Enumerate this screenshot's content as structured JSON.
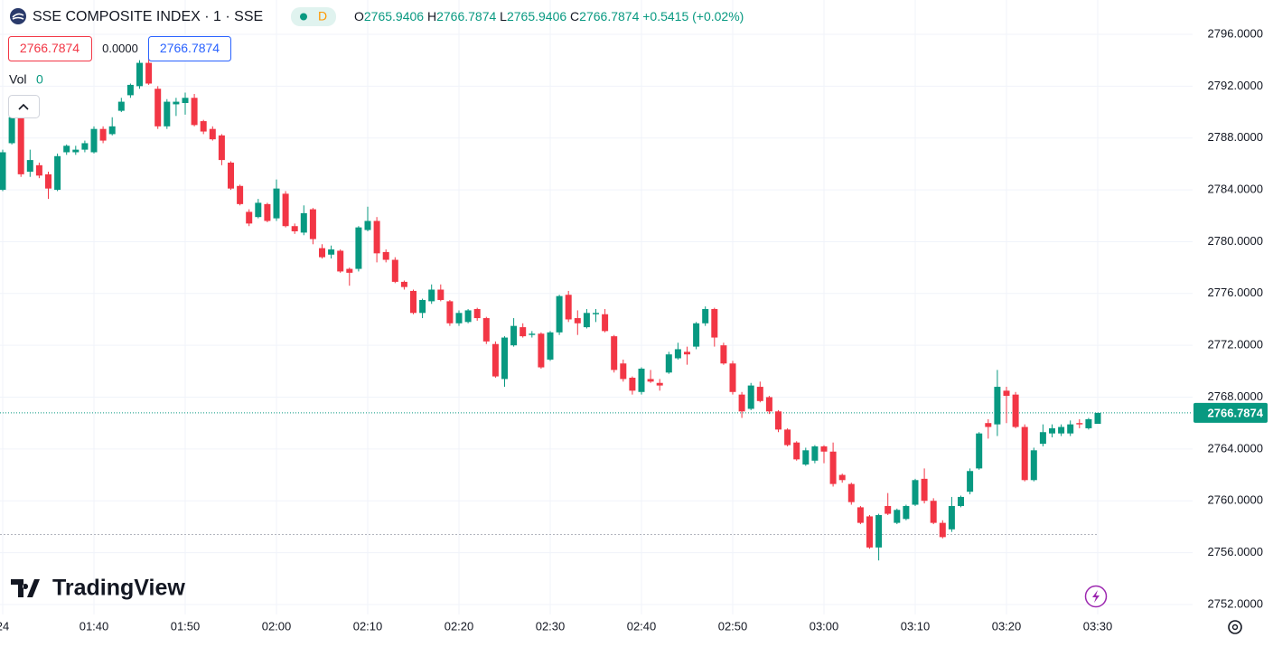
{
  "chart_data": {
    "type": "candlestick",
    "title": "SSE COMPOSITE INDEX · 1 · SSE",
    "interval_badge": "D",
    "ohlc_letters": [
      "O",
      "H",
      "L",
      "C"
    ],
    "change_text": "+0.5415 (+0.02%)",
    "spread_text": "0.0000",
    "volume_label": "Vol",
    "volume_value": "0",
    "brand": "TradingView",
    "up_color": "#089981",
    "down_color": "#f23645",
    "reference_line": 2757.4,
    "grid": true,
    "ylim": [
      2751.23,
      2798.65
    ],
    "yticks": [
      {
        "value": 2752,
        "label": "2752.0000"
      },
      {
        "value": 2756,
        "label": "2756.0000"
      },
      {
        "value": 2760,
        "label": "2760.0000"
      },
      {
        "value": 2764,
        "label": "2764.0000"
      },
      {
        "value": 2768,
        "label": "2768.0000"
      },
      {
        "value": 2772,
        "label": "2772.0000"
      },
      {
        "value": 2776,
        "label": "2776.0000"
      },
      {
        "value": 2780,
        "label": "2780.0000"
      },
      {
        "value": 2784,
        "label": "2784.0000"
      },
      {
        "value": 2788,
        "label": "2788.0000"
      },
      {
        "value": 2792,
        "label": "2792.0000"
      },
      {
        "value": 2796,
        "label": "2796.0000"
      }
    ],
    "categories": [
      "24",
      null,
      null,
      null,
      null,
      null,
      null,
      null,
      null,
      null,
      "01:40",
      null,
      null,
      null,
      null,
      null,
      null,
      null,
      null,
      null,
      "01:50",
      null,
      null,
      null,
      null,
      null,
      null,
      null,
      null,
      null,
      "02:00",
      null,
      null,
      null,
      null,
      null,
      null,
      null,
      null,
      null,
      "02:10",
      null,
      null,
      null,
      null,
      null,
      null,
      null,
      null,
      null,
      "02:20",
      null,
      null,
      null,
      null,
      null,
      null,
      null,
      null,
      null,
      "02:30",
      null,
      null,
      null,
      null,
      null,
      null,
      null,
      null,
      null,
      "02:40",
      null,
      null,
      null,
      null,
      null,
      null,
      null,
      null,
      null,
      "02:50",
      null,
      null,
      null,
      null,
      null,
      null,
      null,
      null,
      null,
      "03:00",
      null,
      null,
      null,
      null,
      null,
      null,
      null,
      null,
      null,
      "03:10",
      null,
      null,
      null,
      null,
      null,
      null,
      null,
      null,
      null,
      "03:20",
      null,
      null,
      null,
      null,
      null,
      null,
      null,
      null,
      null,
      "03:30"
    ],
    "ohlc": [
      [
        2784.0,
        2787.1,
        2783.9,
        2786.9
      ],
      [
        2787.6,
        2789.7,
        2787.5,
        2789.6
      ],
      [
        2789.6,
        2789.7,
        2785.0,
        2785.2
      ],
      [
        2785.4,
        2787.1,
        2785.0,
        2786.3
      ],
      [
        2785.9,
        2786.1,
        2784.9,
        2785.1
      ],
      [
        2785.2,
        2785.4,
        2783.3,
        2784.1
      ],
      [
        2784.0,
        2786.8,
        2783.9,
        2786.6
      ],
      [
        2786.9,
        2787.5,
        2786.7,
        2787.4
      ],
      [
        2786.9,
        2787.4,
        2786.7,
        2787.1
      ],
      [
        2787.1,
        2787.8,
        2786.9,
        2787.6
      ],
      [
        2786.9,
        2788.9,
        2786.8,
        2788.7
      ],
      [
        2788.7,
        2788.9,
        2787.6,
        2787.8
      ],
      [
        2788.3,
        2789.6,
        2788.2,
        2788.9
      ],
      [
        2790.1,
        2791.1,
        2790.0,
        2790.8
      ],
      [
        2791.3,
        2792.2,
        2791.1,
        2792.1
      ],
      [
        2792.0,
        2794.0,
        2791.8,
        2793.8
      ],
      [
        2793.8,
        2794.2,
        2792.1,
        2792.2
      ],
      [
        2791.8,
        2792.0,
        2788.7,
        2788.9
      ],
      [
        2788.9,
        2791.0,
        2788.7,
        2790.8
      ],
      [
        2790.6,
        2791.1,
        2789.7,
        2790.8
      ],
      [
        2790.7,
        2791.5,
        2789.8,
        2791.1
      ],
      [
        2791.1,
        2791.4,
        2788.9,
        2789.0
      ],
      [
        2789.3,
        2789.4,
        2788.3,
        2788.5
      ],
      [
        2788.7,
        2788.9,
        2787.8,
        2787.9
      ],
      [
        2788.2,
        2788.3,
        2785.9,
        2786.3
      ],
      [
        2786.1,
        2786.2,
        2784.0,
        2784.1
      ],
      [
        2784.3,
        2784.4,
        2782.8,
        2782.9
      ],
      [
        2782.3,
        2782.5,
        2781.2,
        2781.4
      ],
      [
        2781.9,
        2783.3,
        2781.8,
        2783.0
      ],
      [
        2782.9,
        2783.0,
        2781.5,
        2781.6
      ],
      [
        2781.8,
        2784.8,
        2781.6,
        2784.1
      ],
      [
        2783.7,
        2783.9,
        2781.1,
        2781.2
      ],
      [
        2781.2,
        2781.4,
        2780.6,
        2780.8
      ],
      [
        2780.7,
        2782.8,
        2780.5,
        2782.2
      ],
      [
        2782.5,
        2782.6,
        2779.8,
        2780.2
      ],
      [
        2779.5,
        2779.8,
        2778.7,
        2778.8
      ],
      [
        2779.0,
        2779.7,
        2778.7,
        2779.4
      ],
      [
        2779.3,
        2779.4,
        2777.6,
        2777.7
      ],
      [
        2777.9,
        2778.0,
        2776.6,
        2777.6
      ],
      [
        2777.9,
        2781.2,
        2777.7,
        2781.1
      ],
      [
        2780.9,
        2782.7,
        2780.8,
        2781.6
      ],
      [
        2781.6,
        2781.9,
        2778.4,
        2779.1
      ],
      [
        2779.2,
        2779.4,
        2778.4,
        2778.6
      ],
      [
        2778.6,
        2778.8,
        2776.8,
        2776.9
      ],
      [
        2776.9,
        2777.0,
        2776.3,
        2776.5
      ],
      [
        2776.2,
        2776.3,
        2774.4,
        2774.5
      ],
      [
        2774.5,
        2775.6,
        2774.1,
        2775.5
      ],
      [
        2775.4,
        2776.7,
        2775.2,
        2776.3
      ],
      [
        2776.3,
        2776.7,
        2775.4,
        2775.5
      ],
      [
        2775.4,
        2775.5,
        2773.5,
        2773.7
      ],
      [
        2773.7,
        2774.7,
        2773.5,
        2774.5
      ],
      [
        2773.8,
        2774.8,
        2773.7,
        2774.7
      ],
      [
        2774.8,
        2774.9,
        2773.9,
        2774.1
      ],
      [
        2774.1,
        2774.2,
        2772.1,
        2772.3
      ],
      [
        2772.1,
        2772.3,
        2769.5,
        2769.6
      ],
      [
        2769.4,
        2772.7,
        2768.8,
        2772.6
      ],
      [
        2772.0,
        2774.1,
        2771.9,
        2773.5
      ],
      [
        2773.4,
        2773.7,
        2772.6,
        2772.7
      ],
      [
        2772.8,
        2773.1,
        2772.6,
        2772.9
      ],
      [
        2772.9,
        2773.0,
        2770.2,
        2770.3
      ],
      [
        2770.9,
        2773.1,
        2770.8,
        2773.0
      ],
      [
        2773.0,
        2775.9,
        2772.8,
        2775.8
      ],
      [
        2775.9,
        2776.2,
        2773.8,
        2774.0
      ],
      [
        2774.1,
        2774.7,
        2772.8,
        2773.7
      ],
      [
        2773.4,
        2774.8,
        2773.3,
        2774.5
      ],
      [
        2774.4,
        2774.8,
        2773.8,
        2774.5
      ],
      [
        2774.4,
        2774.8,
        2773.0,
        2773.1
      ],
      [
        2772.7,
        2772.8,
        2769.9,
        2770.1
      ],
      [
        2770.6,
        2770.9,
        2769.2,
        2769.4
      ],
      [
        2769.5,
        2769.6,
        2768.2,
        2768.5
      ],
      [
        2768.4,
        2770.3,
        2768.2,
        2770.2
      ],
      [
        2769.4,
        2770.1,
        2769.1,
        2769.2
      ],
      [
        2769.1,
        2769.4,
        2768.5,
        2768.9
      ],
      [
        2769.9,
        2771.5,
        2769.8,
        2771.3
      ],
      [
        2771.0,
        2772.2,
        2770.9,
        2771.7
      ],
      [
        2771.5,
        2771.9,
        2770.5,
        2771.3
      ],
      [
        2771.9,
        2773.8,
        2771.7,
        2773.7
      ],
      [
        2773.7,
        2775.0,
        2773.5,
        2774.8
      ],
      [
        2774.8,
        2774.9,
        2771.9,
        2772.6
      ],
      [
        2772.0,
        2772.2,
        2770.5,
        2770.6
      ],
      [
        2770.6,
        2770.8,
        2768.2,
        2768.4
      ],
      [
        2768.2,
        2768.4,
        2766.4,
        2766.9
      ],
      [
        2767.1,
        2769.1,
        2767.0,
        2768.9
      ],
      [
        2768.8,
        2769.2,
        2767.6,
        2767.7
      ],
      [
        2768.0,
        2768.1,
        2766.7,
        2766.9
      ],
      [
        2766.9,
        2767.0,
        2765.3,
        2765.5
      ],
      [
        2765.5,
        2765.6,
        2764.2,
        2764.3
      ],
      [
        2764.5,
        2764.6,
        2763.1,
        2763.2
      ],
      [
        2762.8,
        2764.1,
        2762.7,
        2763.9
      ],
      [
        2763.1,
        2764.3,
        2762.9,
        2764.2
      ],
      [
        2764.2,
        2764.3,
        2762.9,
        2763.8
      ],
      [
        2763.8,
        2764.5,
        2761.1,
        2761.3
      ],
      [
        2762.0,
        2762.1,
        2761.4,
        2761.6
      ],
      [
        2761.3,
        2761.4,
        2759.7,
        2759.9
      ],
      [
        2759.5,
        2759.6,
        2758.2,
        2758.3
      ],
      [
        2758.8,
        2758.9,
        2756.3,
        2756.4
      ],
      [
        2756.4,
        2759.0,
        2755.4,
        2758.9
      ],
      [
        2759.6,
        2760.6,
        2758.9,
        2759.0
      ],
      [
        2758.3,
        2759.4,
        2758.2,
        2759.3
      ],
      [
        2758.6,
        2759.7,
        2758.5,
        2759.6
      ],
      [
        2759.7,
        2761.7,
        2759.6,
        2761.6
      ],
      [
        2761.7,
        2762.5,
        2759.8,
        2760.0
      ],
      [
        2760.0,
        2760.2,
        2758.2,
        2758.3
      ],
      [
        2758.3,
        2758.5,
        2757.1,
        2757.2
      ],
      [
        2757.8,
        2760.3,
        2757.6,
        2759.6
      ],
      [
        2759.6,
        2760.4,
        2759.5,
        2760.3
      ],
      [
        2760.7,
        2762.5,
        2760.5,
        2762.3
      ],
      [
        2762.5,
        2765.3,
        2762.4,
        2765.2
      ],
      [
        2766.0,
        2766.3,
        2764.8,
        2765.7
      ],
      [
        2765.9,
        2770.1,
        2765.0,
        2768.8
      ],
      [
        2768.5,
        2768.8,
        2766.0,
        2768.1
      ],
      [
        2768.2,
        2768.4,
        2765.6,
        2765.7
      ],
      [
        2765.7,
        2765.9,
        2761.5,
        2761.6
      ],
      [
        2761.6,
        2764.1,
        2761.5,
        2763.9
      ],
      [
        2764.4,
        2765.9,
        2764.2,
        2765.3
      ],
      [
        2765.2,
        2765.9,
        2764.9,
        2765.6
      ],
      [
        2765.2,
        2765.9,
        2765.0,
        2765.7
      ],
      [
        2765.2,
        2766.2,
        2765.0,
        2765.9
      ],
      [
        2766.0,
        2766.3,
        2765.6,
        2765.9
      ],
      [
        2765.6,
        2766.4,
        2765.5,
        2766.3
      ],
      [
        2765.9406,
        2766.7874,
        2765.9406,
        2766.7874
      ]
    ]
  }
}
